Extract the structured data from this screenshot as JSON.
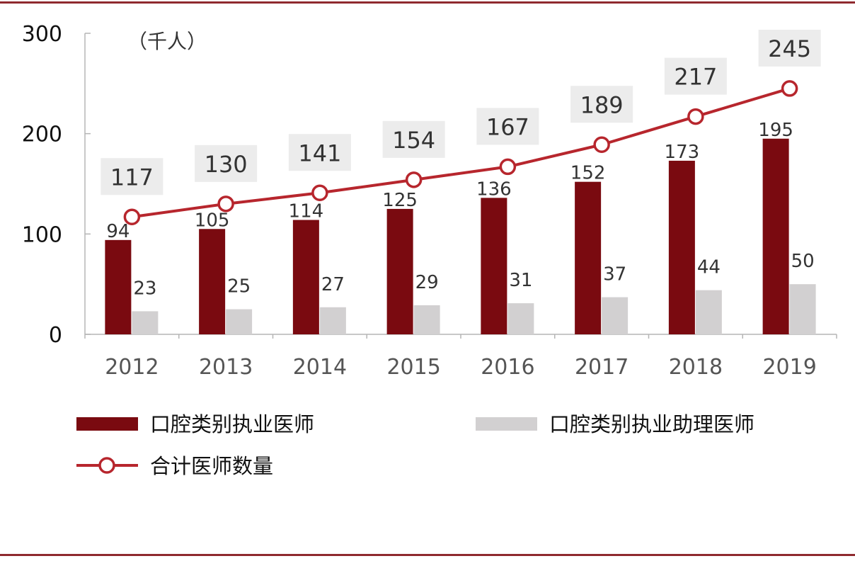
{
  "chart_data": {
    "type": "bar",
    "unit_label": "（千人）",
    "categories": [
      "2012",
      "2013",
      "2014",
      "2015",
      "2016",
      "2017",
      "2018",
      "2019"
    ],
    "series": [
      {
        "name": "口腔类别执业医师",
        "type": "bar",
        "color": "#7a0a10",
        "values": [
          94,
          105,
          114,
          125,
          136,
          152,
          173,
          195
        ]
      },
      {
        "name": "口腔类别执业助理医师",
        "type": "bar",
        "color": "#d2d0d1",
        "values": [
          23,
          25,
          27,
          29,
          31,
          37,
          44,
          50
        ]
      },
      {
        "name": "合计医师数量",
        "type": "line",
        "color": "#b7262d",
        "values": [
          117,
          130,
          141,
          154,
          167,
          189,
          217,
          245
        ]
      }
    ],
    "y_ticks": [
      "0",
      "100",
      "200",
      "300"
    ],
    "ylim": [
      0,
      300
    ],
    "grid": false,
    "legend_position": "bottom-left"
  },
  "colors": {
    "frame_rule": "#8f2a2f",
    "axis": "#b5b5b5",
    "text": "#333333",
    "label_box": "#ececec"
  }
}
